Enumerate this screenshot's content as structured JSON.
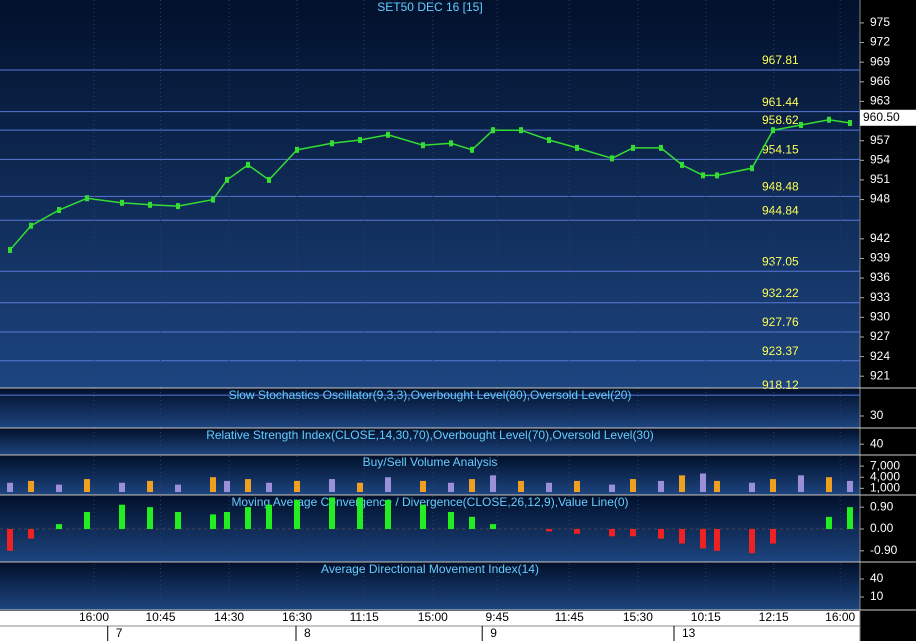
{
  "chart_data": [
    {
      "type": "line",
      "title": "SET50 DEC 16  [15]",
      "color": "#33dd33",
      "x": [
        0,
        3,
        7,
        11,
        16,
        20,
        24,
        29,
        31,
        34,
        37,
        41,
        46,
        50,
        54,
        59,
        63,
        66,
        69,
        73,
        77,
        81,
        86,
        89,
        93,
        96,
        99,
        101,
        106,
        109,
        113,
        117,
        120
      ],
      "values": [
        940.3,
        944,
        946.4,
        948.2,
        947.5,
        947.2,
        947,
        948,
        951,
        953.3,
        951,
        955.6,
        956.6,
        957.1,
        957.9,
        956.3,
        956.6,
        955.6,
        958.6,
        958.6,
        957.1,
        955.9,
        954.3,
        955.9,
        955.9,
        953.3,
        951.7,
        951.7,
        952.8,
        958.6,
        959.4,
        960.2,
        959.7
      ],
      "current": {
        "value": 960.5,
        "label": "960.50"
      },
      "levels": [
        967.81,
        961.44,
        958.62,
        954.15,
        948.48,
        944.84,
        937.05,
        932.22,
        927.76,
        923.37,
        918.12
      ],
      "ylim": [
        919.2,
        978.5
      ],
      "yticks": [
        975,
        972,
        969,
        966,
        963,
        957,
        954,
        951,
        948,
        942,
        939,
        936,
        933,
        930,
        927,
        924,
        921
      ],
      "xlim": [
        -1.43,
        121.43
      ],
      "xticks": [
        {
          "value": 12,
          "label": "16:00"
        },
        {
          "value": 21.5,
          "label": "10:45"
        },
        {
          "value": 31.3,
          "label": "14:30"
        },
        {
          "value": 41,
          "label": "16:30"
        },
        {
          "value": 50.6,
          "label": "11:15"
        },
        {
          "value": 60.4,
          "label": "15:00"
        },
        {
          "value": 69.6,
          "label": "9:45"
        },
        {
          "value": 79.9,
          "label": "11:45"
        },
        {
          "value": 89.7,
          "label": "15:30"
        },
        {
          "value": 99.4,
          "label": "10:15"
        },
        {
          "value": 109.1,
          "label": "12:15"
        },
        {
          "value": 118.6,
          "label": "16:00"
        }
      ],
      "dates": [
        {
          "value": 15.1,
          "label": "7"
        },
        {
          "value": 42,
          "label": "8"
        },
        {
          "value": 68.6,
          "label": "9"
        },
        {
          "value": 96,
          "label": "13"
        }
      ]
    },
    {
      "type": "oscillator",
      "title": "Slow Stochastics Oscillator(9,3,3),Overbought Level(80),Oversold Level(20)",
      "ylim": [
        0,
        100
      ],
      "yticks": [
        30
      ]
    },
    {
      "type": "oscillator",
      "title": "Relative Strength Index(CLOSE,14,30,70),Overbought Level(70),Oversold Level(30)",
      "ylim": [
        0,
        100
      ],
      "yticks": [
        40
      ]
    },
    {
      "type": "bar",
      "title": "Buy/Sell Volume Analysis",
      "color": "#f0a020",
      "values": [
        2500,
        3000,
        2000,
        3500,
        2500,
        3000,
        2000,
        4000,
        3000,
        3500,
        2500,
        3000,
        3500,
        2500,
        4000,
        3000,
        2500,
        3500,
        4500,
        3000,
        2500,
        3000,
        2000,
        3500,
        3000,
        4500,
        5000,
        3000,
        2500,
        3500,
        4500,
        4000,
        3000
      ],
      "ylim": [
        -800,
        10000
      ],
      "yticks": [
        {
          "value": 7000,
          "label": "7,000"
        },
        {
          "value": 4000,
          "label": "4,000"
        },
        {
          "value": 1000,
          "label": "1,000"
        }
      ]
    },
    {
      "type": "area",
      "title": "Moving Average Convergence / Divergence(CLOSE,26,12,9),Value Line(0)",
      "values": [
        -0.9,
        -0.4,
        0.2,
        0.7,
        1.0,
        0.9,
        0.7,
        0.6,
        0.7,
        0.9,
        1.0,
        1.2,
        1.3,
        1.3,
        1.2,
        1.0,
        0.7,
        0.5,
        0.2,
        0.0,
        -0.1,
        -0.2,
        -0.3,
        -0.3,
        -0.4,
        -0.6,
        -0.8,
        -0.9,
        -1.0,
        -0.6,
        0.0,
        0.5,
        0.9
      ],
      "ylim": [
        -1.36,
        1.4
      ],
      "yticks": [
        {
          "value": 0.9,
          "label": "0.90"
        },
        {
          "value": 0,
          "label": "0.00"
        },
        {
          "value": -0.9,
          "label": "-0.90"
        }
      ]
    },
    {
      "type": "oscillator",
      "title": "Average Directional Movement Index(14)",
      "ylim": [
        -11.7,
        68.3
      ],
      "yticks": [
        40,
        10
      ]
    }
  ]
}
